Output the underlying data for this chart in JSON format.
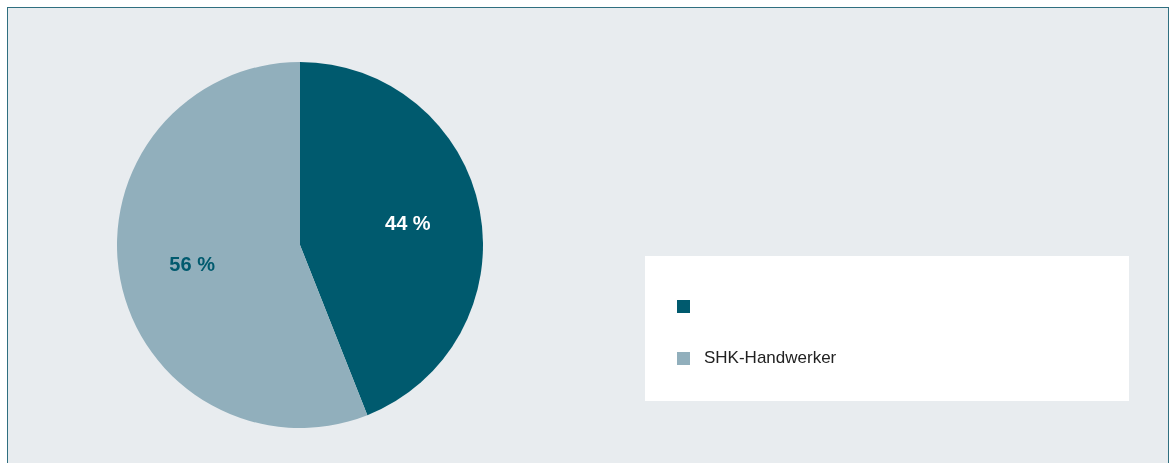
{
  "chart_data": {
    "type": "pie",
    "categories": [
      null,
      "SHK-Handwerker"
    ],
    "values": [
      44,
      56
    ],
    "colors": [
      "#005a6e",
      "#91afbc"
    ],
    "value_labels": [
      "44 %",
      "56 %"
    ],
    "legend": "right"
  }
}
